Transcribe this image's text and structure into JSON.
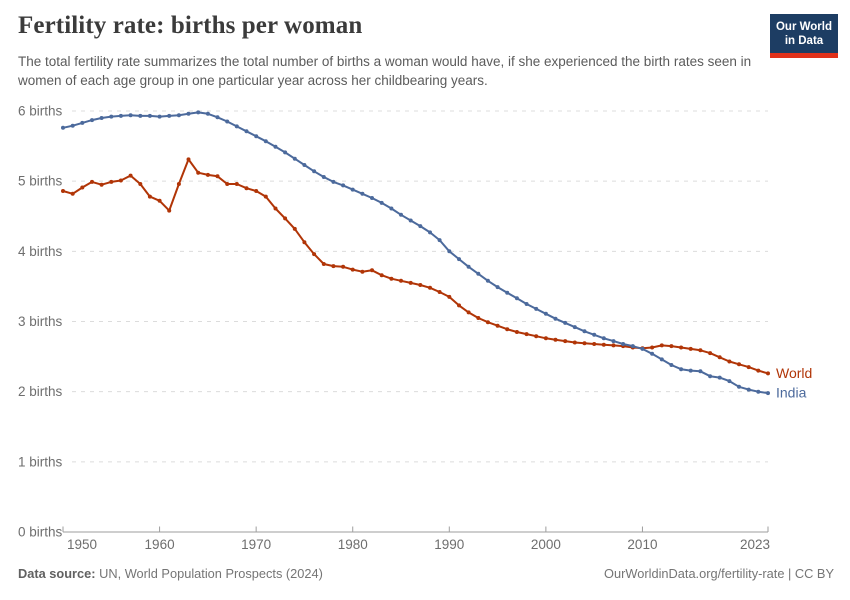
{
  "header": {
    "title": "Fertility rate: births per woman",
    "subtitle": "The total fertility rate summarizes the total number of births a woman would have, if she experienced the birth rates seen in women of each age group in one particular year across her childbearing years.",
    "logo_line1": "Our World",
    "logo_line2": "in Data"
  },
  "footer": {
    "datasource_label": "Data source:",
    "datasource_value": "UN, World Population Prospects (2024)",
    "credit": "OurWorldinData.org/fertility-rate | CC BY"
  },
  "colors": {
    "world_line": "#b13507",
    "india_line": "#4c6a9c",
    "gridline": "#dcdcdc",
    "axis": "#9e9e9e",
    "tick_text": "#6e6e6e",
    "logo_bg": "#1d3d63",
    "logo_stripe": "#e0311b"
  },
  "chart_data": {
    "type": "line",
    "title": "Fertility rate: births per woman",
    "grid": "horizontal-dashed",
    "legend_position": "line-end-labels",
    "xlim": [
      1950,
      2023
    ],
    "ylim": [
      0,
      6
    ],
    "xticks": [
      1950,
      1960,
      1970,
      1980,
      1990,
      2000,
      2010,
      2023
    ],
    "ytick_values": [
      0,
      1,
      2,
      3,
      4,
      5,
      6
    ],
    "ytick_labels": [
      "0 births",
      "1 births",
      "2 births",
      "3 births",
      "4 births",
      "5 births",
      "6 births"
    ],
    "x": [
      1950,
      1951,
      1952,
      1953,
      1954,
      1955,
      1956,
      1957,
      1958,
      1959,
      1960,
      1961,
      1962,
      1963,
      1964,
      1965,
      1966,
      1967,
      1968,
      1969,
      1970,
      1971,
      1972,
      1973,
      1974,
      1975,
      1976,
      1977,
      1978,
      1979,
      1980,
      1981,
      1982,
      1983,
      1984,
      1985,
      1986,
      1987,
      1988,
      1989,
      1990,
      1991,
      1992,
      1993,
      1994,
      1995,
      1996,
      1997,
      1998,
      1999,
      2000,
      2001,
      2002,
      2003,
      2004,
      2005,
      2006,
      2007,
      2008,
      2009,
      2010,
      2011,
      2012,
      2013,
      2014,
      2015,
      2016,
      2017,
      2018,
      2019,
      2020,
      2021,
      2022,
      2023
    ],
    "series": [
      {
        "name": "World",
        "color": "#b13507",
        "values": [
          4.86,
          4.82,
          4.91,
          4.99,
          4.95,
          4.99,
          5.01,
          5.08,
          4.96,
          4.78,
          4.72,
          4.58,
          4.96,
          5.31,
          5.12,
          5.09,
          5.07,
          4.96,
          4.96,
          4.9,
          4.86,
          4.78,
          4.61,
          4.47,
          4.32,
          4.13,
          3.96,
          3.82,
          3.79,
          3.78,
          3.74,
          3.71,
          3.73,
          3.66,
          3.61,
          3.58,
          3.55,
          3.52,
          3.48,
          3.42,
          3.35,
          3.23,
          3.13,
          3.05,
          2.99,
          2.94,
          2.89,
          2.85,
          2.82,
          2.79,
          2.76,
          2.74,
          2.72,
          2.7,
          2.69,
          2.68,
          2.67,
          2.66,
          2.65,
          2.63,
          2.62,
          2.63,
          2.66,
          2.65,
          2.63,
          2.61,
          2.59,
          2.55,
          2.49,
          2.43,
          2.39,
          2.35,
          2.3,
          2.26
        ]
      },
      {
        "name": "India",
        "color": "#4c6a9c",
        "values": [
          5.76,
          5.79,
          5.83,
          5.87,
          5.9,
          5.92,
          5.93,
          5.94,
          5.93,
          5.93,
          5.92,
          5.93,
          5.94,
          5.96,
          5.98,
          5.96,
          5.91,
          5.85,
          5.78,
          5.71,
          5.64,
          5.57,
          5.49,
          5.41,
          5.32,
          5.23,
          5.14,
          5.06,
          4.99,
          4.94,
          4.88,
          4.82,
          4.76,
          4.69,
          4.61,
          4.52,
          4.44,
          4.36,
          4.27,
          4.16,
          4.0,
          3.89,
          3.78,
          3.68,
          3.58,
          3.49,
          3.41,
          3.33,
          3.25,
          3.18,
          3.11,
          3.04,
          2.98,
          2.92,
          2.86,
          2.81,
          2.76,
          2.72,
          2.68,
          2.65,
          2.61,
          2.54,
          2.46,
          2.38,
          2.32,
          2.3,
          2.29,
          2.22,
          2.2,
          2.15,
          2.07,
          2.03,
          2.0,
          1.98
        ]
      }
    ]
  }
}
